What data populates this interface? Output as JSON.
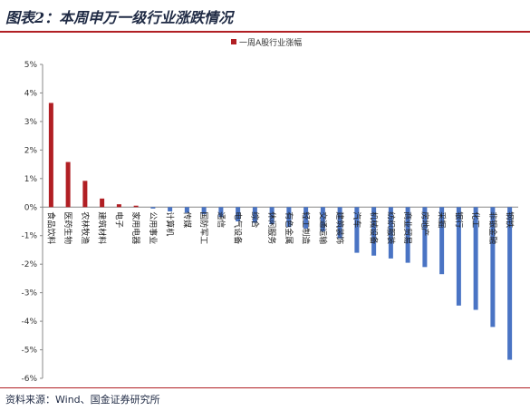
{
  "figure": {
    "title": "图表2：本周申万一级行业涨跌情况",
    "source": "资料来源：Wind、国金证券研究所"
  },
  "chart_data": {
    "type": "bar",
    "legend": {
      "label": "一周A股行业涨幅",
      "position": "top-center"
    },
    "ylim": [
      -6,
      5
    ],
    "yticks": [
      "5%",
      "4%",
      "3%",
      "2%",
      "1%",
      "0%",
      "-1%",
      "-2%",
      "-3%",
      "-4%",
      "-5%",
      "-6%"
    ],
    "grid": false,
    "colors": {
      "positive": "#b11f24",
      "negative": "#4a74c4"
    },
    "categories": [
      "食品饮料",
      "医药生物",
      "农林牧渔",
      "建筑材料",
      "电子",
      "家用电器",
      "公用事业",
      "计算机",
      "传媒",
      "国防军工",
      "通信",
      "电气设备",
      "综合",
      "休闲服务",
      "有色金属",
      "轻工制造",
      "交通运输",
      "建筑装饰",
      "汽车",
      "机械设备",
      "纺织服装",
      "商业贸易",
      "房地产",
      "采掘",
      "银行",
      "化工",
      "非银金融",
      "钢铁"
    ],
    "values": [
      3.65,
      1.58,
      0.92,
      0.3,
      0.1,
      0.05,
      -0.05,
      -0.15,
      -0.2,
      -0.25,
      -0.35,
      -0.5,
      -0.55,
      -0.6,
      -0.7,
      -0.75,
      -0.85,
      -1.1,
      -1.6,
      -1.7,
      -1.8,
      -1.95,
      -2.1,
      -2.35,
      -3.45,
      -3.6,
      -4.2,
      -5.35
    ]
  }
}
